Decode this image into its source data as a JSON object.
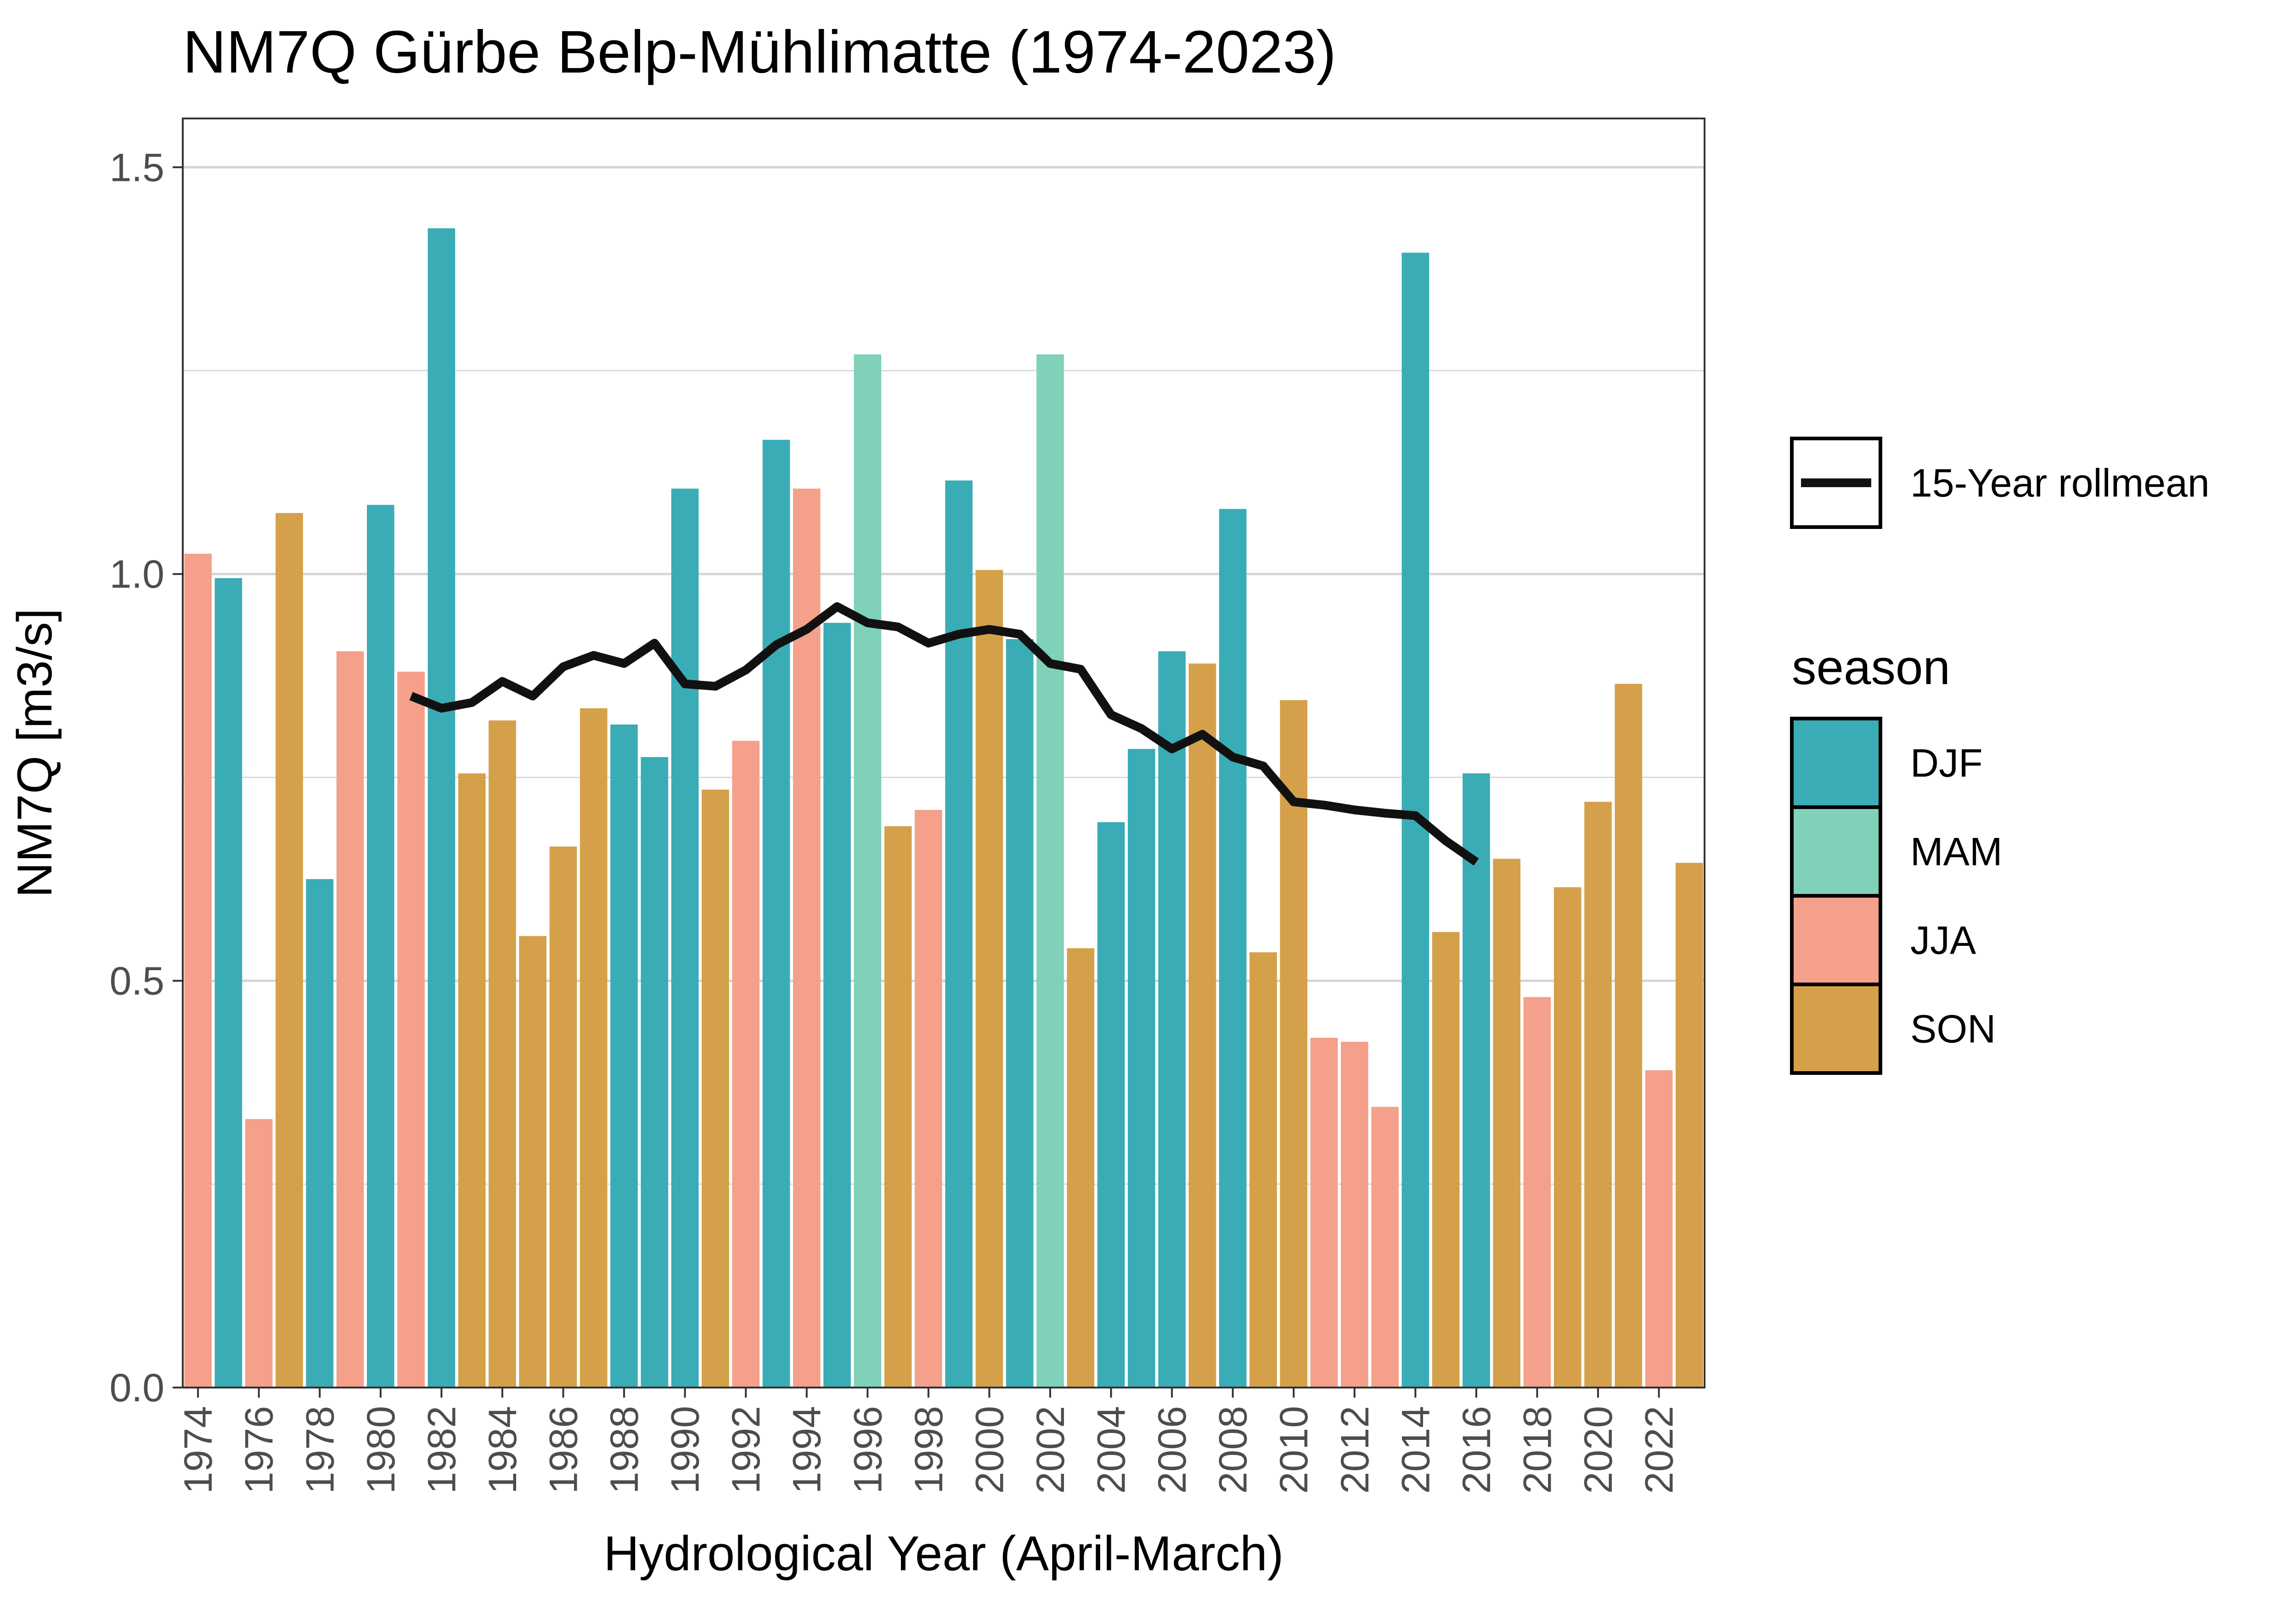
{
  "chart_data": {
    "type": "bar",
    "title": "NM7Q Gürbe Belp-Mühlimatte (1974-2023)",
    "xlabel": "Hydrological Year (April-March)",
    "ylabel": "NM7Q [m3/s]",
    "ylim": [
      0,
      1.56
    ],
    "yticks": [
      0.0,
      0.5,
      1.0,
      1.5
    ],
    "ytick_labels": [
      "0.0",
      "0.5",
      "1.0",
      "1.5"
    ],
    "xtick_labels": [
      "1974",
      "1976",
      "1978",
      "1980",
      "1982",
      "1984",
      "1986",
      "1988",
      "1990",
      "1992",
      "1994",
      "1996",
      "1998",
      "2000",
      "2002",
      "2004",
      "2006",
      "2008",
      "2010",
      "2012",
      "2014",
      "2016",
      "2018",
      "2020",
      "2022"
    ],
    "grid": true,
    "legend_placement": "right",
    "colors": {
      "DJF": "#3aacb5",
      "MAM": "#7fd1b9",
      "JJA": "#f4a08a",
      "SON": "#d4a04a",
      "line": "#111111"
    },
    "years": [
      1974,
      1975,
      1976,
      1977,
      1978,
      1979,
      1980,
      1981,
      1982,
      1983,
      1984,
      1985,
      1986,
      1987,
      1988,
      1989,
      1990,
      1991,
      1992,
      1993,
      1994,
      1995,
      1996,
      1997,
      1998,
      1999,
      2000,
      2001,
      2002,
      2003,
      2004,
      2005,
      2006,
      2007,
      2008,
      2009,
      2010,
      2011,
      2012,
      2013,
      2014,
      2015,
      2016,
      2017,
      2018,
      2019,
      2020,
      2021,
      2022,
      2023
    ],
    "values": [
      1.025,
      0.995,
      0.33,
      1.075,
      0.625,
      0.905,
      1.085,
      0.88,
      1.425,
      0.755,
      0.82,
      0.555,
      0.665,
      0.835,
      0.815,
      0.775,
      1.105,
      0.735,
      0.795,
      1.165,
      1.105,
      0.94,
      1.27,
      0.69,
      0.71,
      1.115,
      1.005,
      0.92,
      1.27,
      0.54,
      0.695,
      0.785,
      0.905,
      0.89,
      1.08,
      0.535,
      0.845,
      0.43,
      0.425,
      0.345,
      1.395,
      0.56,
      0.755,
      0.65,
      0.48,
      0.615,
      0.72,
      0.865,
      0.39,
      0.645
    ],
    "season": [
      "JJA",
      "DJF",
      "JJA",
      "SON",
      "DJF",
      "JJA",
      "DJF",
      "JJA",
      "DJF",
      "SON",
      "SON",
      "SON",
      "SON",
      "SON",
      "DJF",
      "DJF",
      "DJF",
      "SON",
      "JJA",
      "DJF",
      "JJA",
      "DJF",
      "MAM",
      "SON",
      "JJA",
      "DJF",
      "SON",
      "DJF",
      "MAM",
      "SON",
      "DJF",
      "DJF",
      "DJF",
      "SON",
      "DJF",
      "SON",
      "SON",
      "JJA",
      "JJA",
      "JJA",
      "DJF",
      "SON",
      "DJF",
      "SON",
      "JJA",
      "SON",
      "SON",
      "SON",
      "JJA",
      "SON"
    ],
    "line_series": {
      "name": "15-Year rollmean",
      "x": [
        1981,
        1982,
        1983,
        1984,
        1985,
        1986,
        1987,
        1988,
        1989,
        1990,
        1991,
        1992,
        1993,
        1994,
        1995,
        1996,
        1997,
        1998,
        1999,
        2000,
        2001,
        2002,
        2003,
        2004,
        2005,
        2006,
        2007,
        2008,
        2009,
        2010,
        2011,
        2012,
        2013,
        2014,
        2015,
        2016
      ],
      "y": [
        0.85,
        0.835,
        0.842,
        0.868,
        0.85,
        0.886,
        0.9,
        0.89,
        0.915,
        0.865,
        0.862,
        0.882,
        0.913,
        0.932,
        0.96,
        0.94,
        0.935,
        0.915,
        0.926,
        0.932,
        0.926,
        0.89,
        0.883,
        0.827,
        0.81,
        0.785,
        0.803,
        0.775,
        0.764,
        0.72,
        0.716,
        0.71,
        0.706,
        0.703,
        0.672,
        0.646
      ]
    },
    "legend": {
      "line_label": "15-Year rollmean",
      "season_title": "season",
      "season_items": [
        "DJF",
        "MAM",
        "JJA",
        "SON"
      ]
    }
  }
}
